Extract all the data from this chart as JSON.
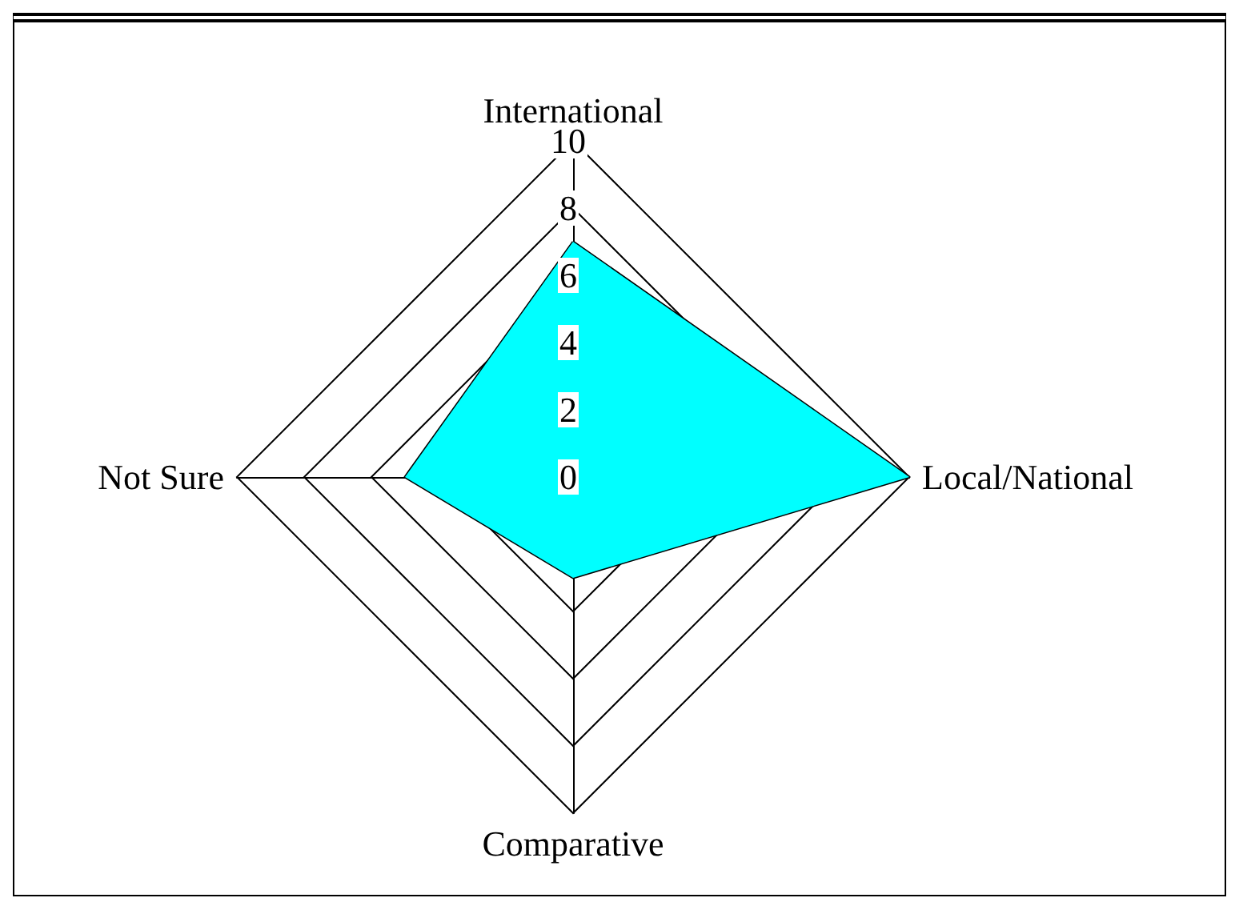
{
  "chart_data": {
    "type": "radar",
    "categories": [
      "International",
      "Local/National",
      "Comparative",
      "Not Sure"
    ],
    "series": [
      {
        "color": "#00ffff",
        "values": [
          7,
          10,
          3,
          5
        ]
      }
    ],
    "ylim": [
      0,
      10
    ],
    "yticks": [
      0,
      2,
      4,
      6,
      8,
      10
    ],
    "grid": true,
    "marker": "none"
  }
}
